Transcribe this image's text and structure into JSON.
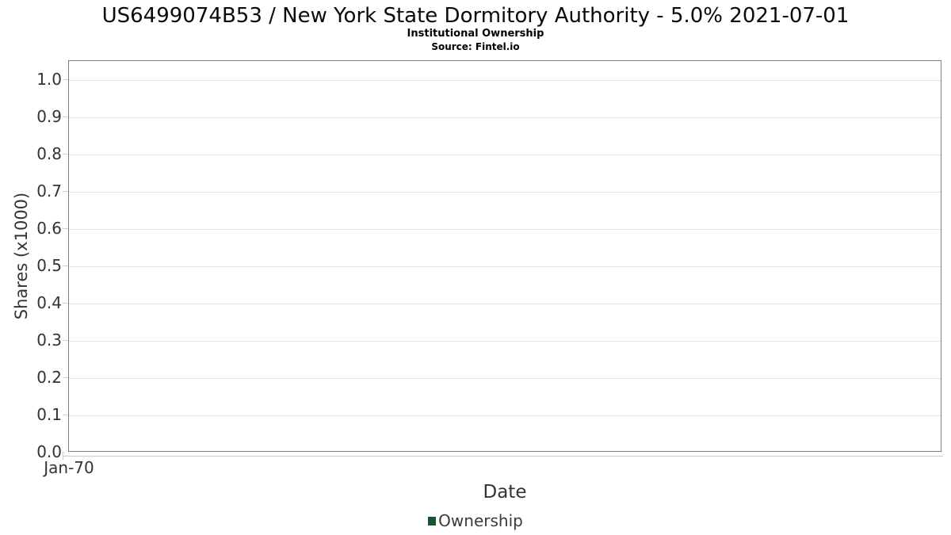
{
  "chart_data": {
    "type": "line",
    "title": "US6499074B53 / New York State Dormitory Authority - 5.0% 2021-07-01",
    "subtitle": "Institutional Ownership",
    "source": "Source: Fintel.io",
    "xlabel": "Date",
    "ylabel": "Shares (x1000)",
    "series": [
      {
        "name": "Ownership",
        "x": [],
        "values": []
      }
    ],
    "x_tick_labels": [
      "Jan-70"
    ],
    "y_ticks": [
      {
        "value": 0.0,
        "label": "0.0"
      },
      {
        "value": 0.1,
        "label": "0.1"
      },
      {
        "value": 0.2,
        "label": "0.2"
      },
      {
        "value": 0.3,
        "label": "0.3"
      },
      {
        "value": 0.4,
        "label": "0.4"
      },
      {
        "value": 0.5,
        "label": "0.5"
      },
      {
        "value": 0.6,
        "label": "0.6"
      },
      {
        "value": 0.7,
        "label": "0.7"
      },
      {
        "value": 0.8,
        "label": "0.8"
      },
      {
        "value": 0.9,
        "label": "0.9"
      },
      {
        "value": 1.0,
        "label": "1.0"
      }
    ],
    "ylim": [
      0,
      1.05
    ],
    "grid": "horizontal",
    "legend_position": "bottom",
    "legend": [
      "Ownership"
    ],
    "colors": {
      "ownership": "#1b5430",
      "grid": "#e2e2e2",
      "plot_border": "#7d7d7d",
      "tick_text": "#333333"
    }
  }
}
